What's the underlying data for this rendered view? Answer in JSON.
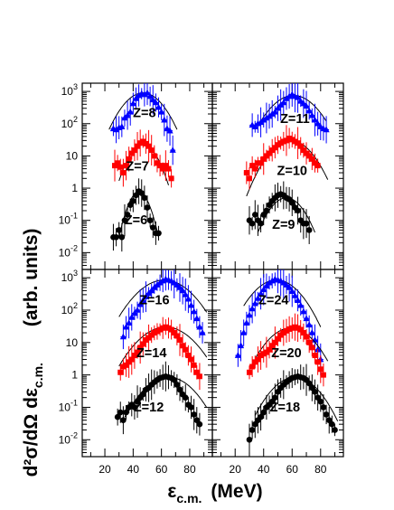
{
  "figure": {
    "ylabel": "d²σ/dΩ dε",
    "ylabel_sub": "c.m.",
    "ylabel_unit": "(arb. units)",
    "xlabel": "ε",
    "xlabel_sub": "c.m.",
    "xlabel_unit": "(MeV)"
  },
  "colors": {
    "blue": "#0000ff",
    "red": "#ff0000",
    "black": "#000000"
  },
  "chart_data": {
    "type": "scatter",
    "log_y": true,
    "xlim": [
      4,
      96
    ],
    "ylim": [
      0.003,
      1800
    ],
    "x_ticks": [
      20,
      40,
      60,
      80
    ],
    "y_ticks": [
      {
        "value": 0.01,
        "base": "10",
        "exp": "-2"
      },
      {
        "value": 0.1,
        "base": "10",
        "exp": "-1"
      },
      {
        "value": 1,
        "label": "1"
      },
      {
        "value": 10,
        "label": "10"
      },
      {
        "value": 100,
        "base": "10",
        "exp": "2"
      },
      {
        "value": 1000,
        "base": "10",
        "exp": "3"
      }
    ],
    "panels": [
      {
        "position": "top-left",
        "series": [
          {
            "label": "Z=8",
            "color": "#0000ff",
            "marker": "triangle",
            "x": [
              26,
              28,
              30,
              32,
              34,
              36,
              38,
              40,
              42,
              44,
              46,
              48,
              50,
              52,
              54,
              56,
              58,
              60,
              62,
              64,
              66,
              68
            ],
            "y": [
              70,
              65,
              75,
              80,
              150,
              180,
              230,
              420,
              600,
              750,
              850,
              800,
              900,
              700,
              550,
              450,
              320,
              230,
              130,
              70,
              60,
              15
            ],
            "fit_peak_x": 47,
            "fit_peak_y": 900,
            "fit_sigma": 10.5,
            "fit_range": [
              23,
              71
            ]
          },
          {
            "label": "Z=7",
            "color": "#ff0000",
            "marker": "square",
            "x": [
              27,
              29,
              31,
              33,
              35,
              37,
              39,
              41,
              43,
              45,
              47,
              49,
              51,
              53,
              55,
              57,
              59,
              61,
              63,
              65,
              67
            ],
            "y": [
              5,
              6,
              4.5,
              3,
              5,
              8,
              12,
              15,
              20,
              25,
              28,
              24,
              20,
              15,
              10,
              6,
              5,
              4,
              5,
              4,
              2
            ],
            "fit_peak_x": 47,
            "fit_peak_y": 22,
            "fit_sigma": 7.5,
            "fit_range": [
              30,
              65
            ]
          },
          {
            "label": "Z=6",
            "color": "#000000",
            "marker": "circle",
            "x": [
              26,
              28,
              30,
              32,
              34,
              36,
              38,
              40,
              42,
              44,
              46,
              48,
              50,
              52,
              54,
              56,
              58
            ],
            "y": [
              0.03,
              0.03,
              0.05,
              0.03,
              0.1,
              0.15,
              0.3,
              0.4,
              0.6,
              0.8,
              0.7,
              0.5,
              0.25,
              0.1,
              0.06,
              0.04,
              0.04
            ],
            "fit_peak_x": 44,
            "fit_peak_y": 0.75,
            "fit_sigma": 5.5,
            "fit_range": [
              30,
              58
            ]
          }
        ],
        "labels": [
          {
            "text": "Z=8",
            "x": 48,
            "y": 160
          },
          {
            "text": "Z=7",
            "x": 43,
            "y": 3.5
          },
          {
            "text": "Z=6",
            "x": 42,
            "y": 0.075
          }
        ]
      },
      {
        "position": "top-right",
        "series": [
          {
            "label": "Z=11",
            "color": "#0000ff",
            "marker": "triangle",
            "x": [
              32,
              34,
              36,
              38,
              40,
              42,
              44,
              46,
              48,
              50,
              52,
              54,
              56,
              58,
              60,
              62,
              64,
              66,
              68,
              70,
              72,
              74,
              76,
              78,
              80,
              82,
              84
            ],
            "y": [
              90,
              80,
              100,
              110,
              130,
              150,
              170,
              200,
              230,
              300,
              380,
              450,
              600,
              700,
              800,
              700,
              650,
              500,
              420,
              350,
              250,
              180,
              130,
              100,
              80,
              70,
              65
            ],
            "fit_peak_x": 61,
            "fit_peak_y": 750,
            "fit_sigma": 12,
            "fit_range": [
              36,
              84
            ]
          },
          {
            "label": "Z=10",
            "color": "#ff0000",
            "marker": "square",
            "x": [
              28,
              30,
              32,
              34,
              36,
              38,
              40,
              42,
              44,
              46,
              48,
              50,
              52,
              54,
              56,
              58,
              60,
              62,
              64,
              66,
              68,
              70,
              72,
              74,
              76,
              78
            ],
            "y": [
              3,
              2,
              5,
              4,
              6,
              6,
              8,
              10,
              12,
              15,
              18,
              22,
              25,
              28,
              30,
              35,
              32,
              28,
              25,
              20,
              15,
              12,
              10,
              8,
              6,
              5
            ],
            "fit_peak_x": 59,
            "fit_peak_y": 30,
            "fit_sigma": 11,
            "fit_range": [
              28,
              85
            ]
          },
          {
            "label": "Z=9",
            "color": "#000000",
            "marker": "circle",
            "x": [
              30,
              32,
              34,
              36,
              38,
              40,
              42,
              44,
              46,
              48,
              50,
              52,
              54,
              56,
              58,
              60,
              62,
              64,
              66,
              68,
              70,
              72
            ],
            "y": [
              0.1,
              0.08,
              0.15,
              0.1,
              0.08,
              0.15,
              0.2,
              0.3,
              0.4,
              0.5,
              0.6,
              0.65,
              0.6,
              0.5,
              0.45,
              0.35,
              0.25,
              0.2,
              0.1,
              0.08,
              0.08,
              0.05
            ],
            "fit_peak_x": 56,
            "fit_peak_y": 0.5,
            "fit_sigma": 9,
            "fit_range": [
              36,
              76
            ]
          }
        ],
        "labels": [
          {
            "text": "Z=11",
            "x": 62,
            "y": 105
          },
          {
            "text": "Z=10",
            "x": 60,
            "y": 2.6
          },
          {
            "text": "Z=9",
            "x": 54,
            "y": 0.055
          }
        ]
      },
      {
        "position": "bottom-left",
        "series": [
          {
            "label": "Z=16",
            "color": "#0000ff",
            "marker": "triangle",
            "x": [
              33,
              35,
              37,
              39,
              41,
              43,
              45,
              47,
              49,
              51,
              53,
              55,
              57,
              59,
              61,
              63,
              65,
              67,
              69,
              71,
              73,
              75,
              77,
              79,
              81,
              83,
              85,
              87,
              89
            ],
            "y": [
              15,
              30,
              40,
              60,
              80,
              100,
              150,
              200,
              260,
              330,
              400,
              500,
              600,
              700,
              800,
              900,
              850,
              800,
              700,
              600,
              500,
              400,
              300,
              220,
              140,
              90,
              55,
              30,
              20
            ],
            "fit_peak_x": 62,
            "fit_peak_y": 850,
            "fit_sigma": 14,
            "fit_range": [
              30,
              92
            ]
          },
          {
            "label": "Z=14",
            "color": "#ff0000",
            "marker": "square",
            "x": [
              31,
              33,
              35,
              37,
              39,
              41,
              43,
              45,
              47,
              49,
              51,
              53,
              55,
              57,
              59,
              61,
              63,
              65,
              67,
              69,
              71,
              73,
              75,
              77,
              79,
              81,
              83,
              85,
              87
            ],
            "y": [
              1.2,
              1.8,
              2,
              2.5,
              3,
              4,
              5,
              7,
              9,
              12,
              14,
              17,
              20,
              22,
              25,
              28,
              30,
              28,
              25,
              20,
              16,
              12,
              8,
              6,
              4,
              3,
              2,
              1.2,
              0.9
            ],
            "fit_peak_x": 63,
            "fit_peak_y": 30,
            "fit_sigma": 14,
            "fit_range": [
              30,
              92
            ]
          },
          {
            "label": "Z=12",
            "color": "#000000",
            "marker": "circle",
            "x": [
              29,
              31,
              33,
              35,
              37,
              39,
              41,
              43,
              45,
              47,
              49,
              51,
              53,
              55,
              57,
              59,
              61,
              63,
              65,
              67,
              69,
              71,
              73,
              75,
              77,
              79,
              81,
              83,
              85,
              87
            ],
            "y": [
              0.05,
              0.07,
              0.04,
              0.07,
              0.1,
              0.12,
              0.1,
              0.15,
              0.2,
              0.25,
              0.35,
              0.4,
              0.5,
              0.6,
              0.7,
              0.8,
              0.85,
              0.9,
              0.85,
              0.8,
              0.7,
              0.5,
              0.35,
              0.25,
              0.2,
              0.12,
              0.1,
              0.06,
              0.04,
              0.03
            ],
            "fit_peak_x": 65,
            "fit_peak_y": 0.85,
            "fit_sigma": 13,
            "fit_range": [
              34,
              92
            ]
          }
        ],
        "labels": [
          {
            "text": "Z=16",
            "x": 55,
            "y": 150
          },
          {
            "text": "Z=14",
            "x": 53,
            "y": 3.5
          },
          {
            "text": "Z=12",
            "x": 51,
            "y": 0.075
          }
        ]
      },
      {
        "position": "bottom-right",
        "series": [
          {
            "label": "Z=24",
            "color": "#0000ff",
            "marker": "triangle",
            "x": [
              22,
              24,
              26,
              28,
              30,
              32,
              34,
              36,
              38,
              40,
              42,
              44,
              46,
              48,
              50,
              52,
              54,
              56,
              58,
              60,
              62,
              64,
              66,
              68,
              70,
              72,
              74,
              76,
              78,
              80
            ],
            "y": [
              4,
              8,
              20,
              40,
              70,
              110,
              160,
              230,
              320,
              430,
              560,
              700,
              800,
              900,
              850,
              800,
              700,
              600,
              500,
              380,
              280,
              200,
              140,
              90,
              55,
              35,
              20,
              12,
              6,
              3
            ],
            "fit_peak_x": 49,
            "fit_peak_y": 850,
            "fit_sigma": 12,
            "fit_range": [
              26,
              80
            ]
          },
          {
            "label": "Z=20",
            "color": "#ff0000",
            "marker": "square",
            "x": [
              30,
              32,
              34,
              36,
              38,
              40,
              42,
              44,
              46,
              48,
              50,
              52,
              54,
              56,
              58,
              60,
              62,
              64,
              66,
              68,
              70,
              72,
              74,
              76,
              78,
              80,
              82
            ],
            "y": [
              1.2,
              1.8,
              2.5,
              3,
              4,
              4.5,
              5,
              6,
              8,
              10,
              13,
              17,
              20,
              23,
              26,
              28,
              30,
              28,
              25,
              20,
              15,
              10,
              7,
              4,
              2.5,
              1.5,
              1
            ],
            "fit_peak_x": 59,
            "fit_peak_y": 28,
            "fit_sigma": 12,
            "fit_range": [
              34,
              85
            ]
          },
          {
            "label": "Z=18",
            "color": "#000000",
            "marker": "circle",
            "x": [
              30,
              32,
              34,
              36,
              38,
              40,
              42,
              44,
              46,
              48,
              50,
              52,
              54,
              56,
              58,
              60,
              62,
              64,
              66,
              68,
              70,
              72,
              74,
              76,
              78,
              80,
              82,
              84,
              86,
              88,
              90
            ],
            "y": [
              0.01,
              0.02,
              0.03,
              0.04,
              0.05,
              0.07,
              0.1,
              0.12,
              0.15,
              0.2,
              0.3,
              0.4,
              0.5,
              0.6,
              0.7,
              0.8,
              0.85,
              0.9,
              0.85,
              0.8,
              0.7,
              0.55,
              0.4,
              0.3,
              0.2,
              0.15,
              0.1,
              0.06,
              0.04,
              0.03,
              0.02
            ],
            "fit_peak_x": 62,
            "fit_peak_y": 0.85,
            "fit_sigma": 12,
            "fit_range": [
              34,
              92
            ]
          }
        ],
        "labels": [
          {
            "text": "Z=24",
            "x": 47,
            "y": 150
          },
          {
            "text": "Z=20",
            "x": 56,
            "y": 3.5
          },
          {
            "text": "Z=18",
            "x": 55,
            "y": 0.075
          }
        ]
      }
    ]
  }
}
